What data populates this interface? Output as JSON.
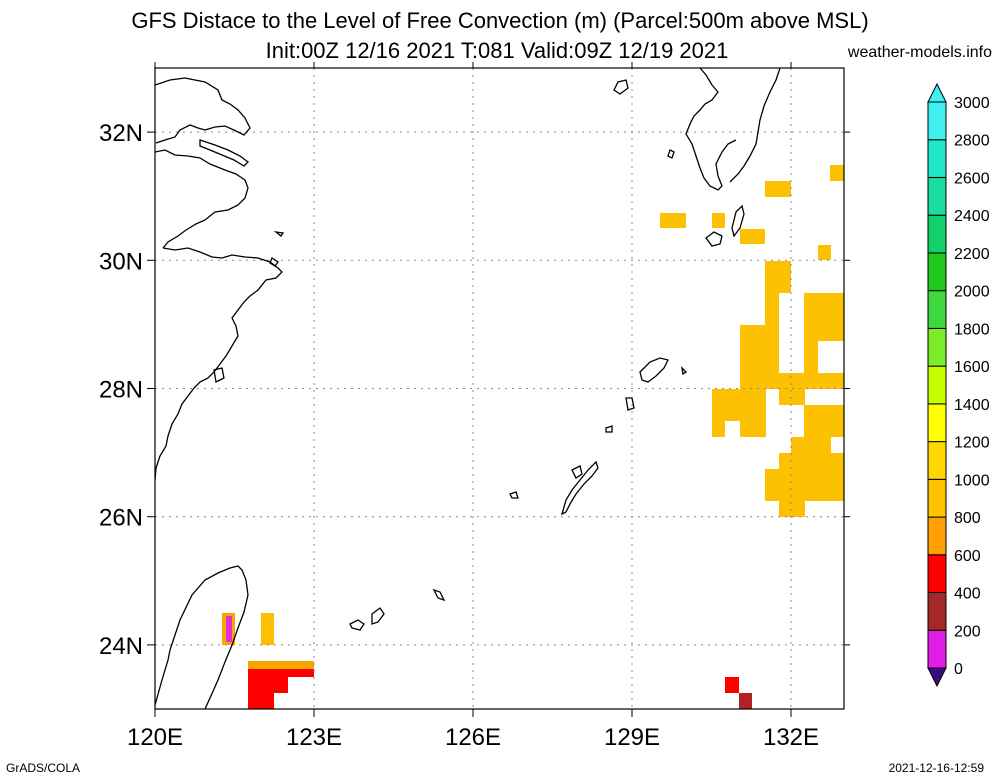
{
  "title_line1": "GFS Distace to the Level of Free Convection (m) (Parcel:500m above MSL)",
  "title_line2": "Init:00Z 12/16 2021 T:081 Valid:09Z 12/19 2021",
  "site": "weather-models.info",
  "footer_left": "GrADS/COLA",
  "footer_right": "2021-12-16-12:59",
  "map": {
    "lon_range": [
      120,
      133
    ],
    "lat_range": [
      23,
      33
    ],
    "lon_ticks": [
      {
        "value": 120,
        "label": "120E"
      },
      {
        "value": 123,
        "label": "123E"
      },
      {
        "value": 126,
        "label": "126E"
      },
      {
        "value": 129,
        "label": "129E"
      },
      {
        "value": 132,
        "label": "132E"
      }
    ],
    "lat_ticks": [
      {
        "value": 24,
        "label": "24N"
      },
      {
        "value": 26,
        "label": "26N"
      },
      {
        "value": 28,
        "label": "28N"
      },
      {
        "value": 30,
        "label": "30N"
      },
      {
        "value": 32,
        "label": "32N"
      }
    ],
    "gridlines": true
  },
  "colorbar": {
    "levels": [
      "0",
      "200",
      "400",
      "600",
      "800",
      "1000",
      "1200",
      "1400",
      "1600",
      "1800",
      "2000",
      "2200",
      "2400",
      "2600",
      "2800",
      "3000"
    ],
    "colors": [
      "#3b0a80",
      "#e21ee6",
      "#a52828",
      "#ff0000",
      "#ffa000",
      "#ffc300",
      "#ffd700",
      "#ffff00",
      "#c8ff00",
      "#7aec2a",
      "#40d840",
      "#1ec81e",
      "#12d06a",
      "#18dca0",
      "#20e6cc",
      "#40f0f0"
    ]
  },
  "field_colors": {
    "gold": "#fcc100",
    "orange": "#f6a800",
    "red": "#ff0000",
    "brown": "#b22222",
    "magenta": "#e82cdc"
  }
}
